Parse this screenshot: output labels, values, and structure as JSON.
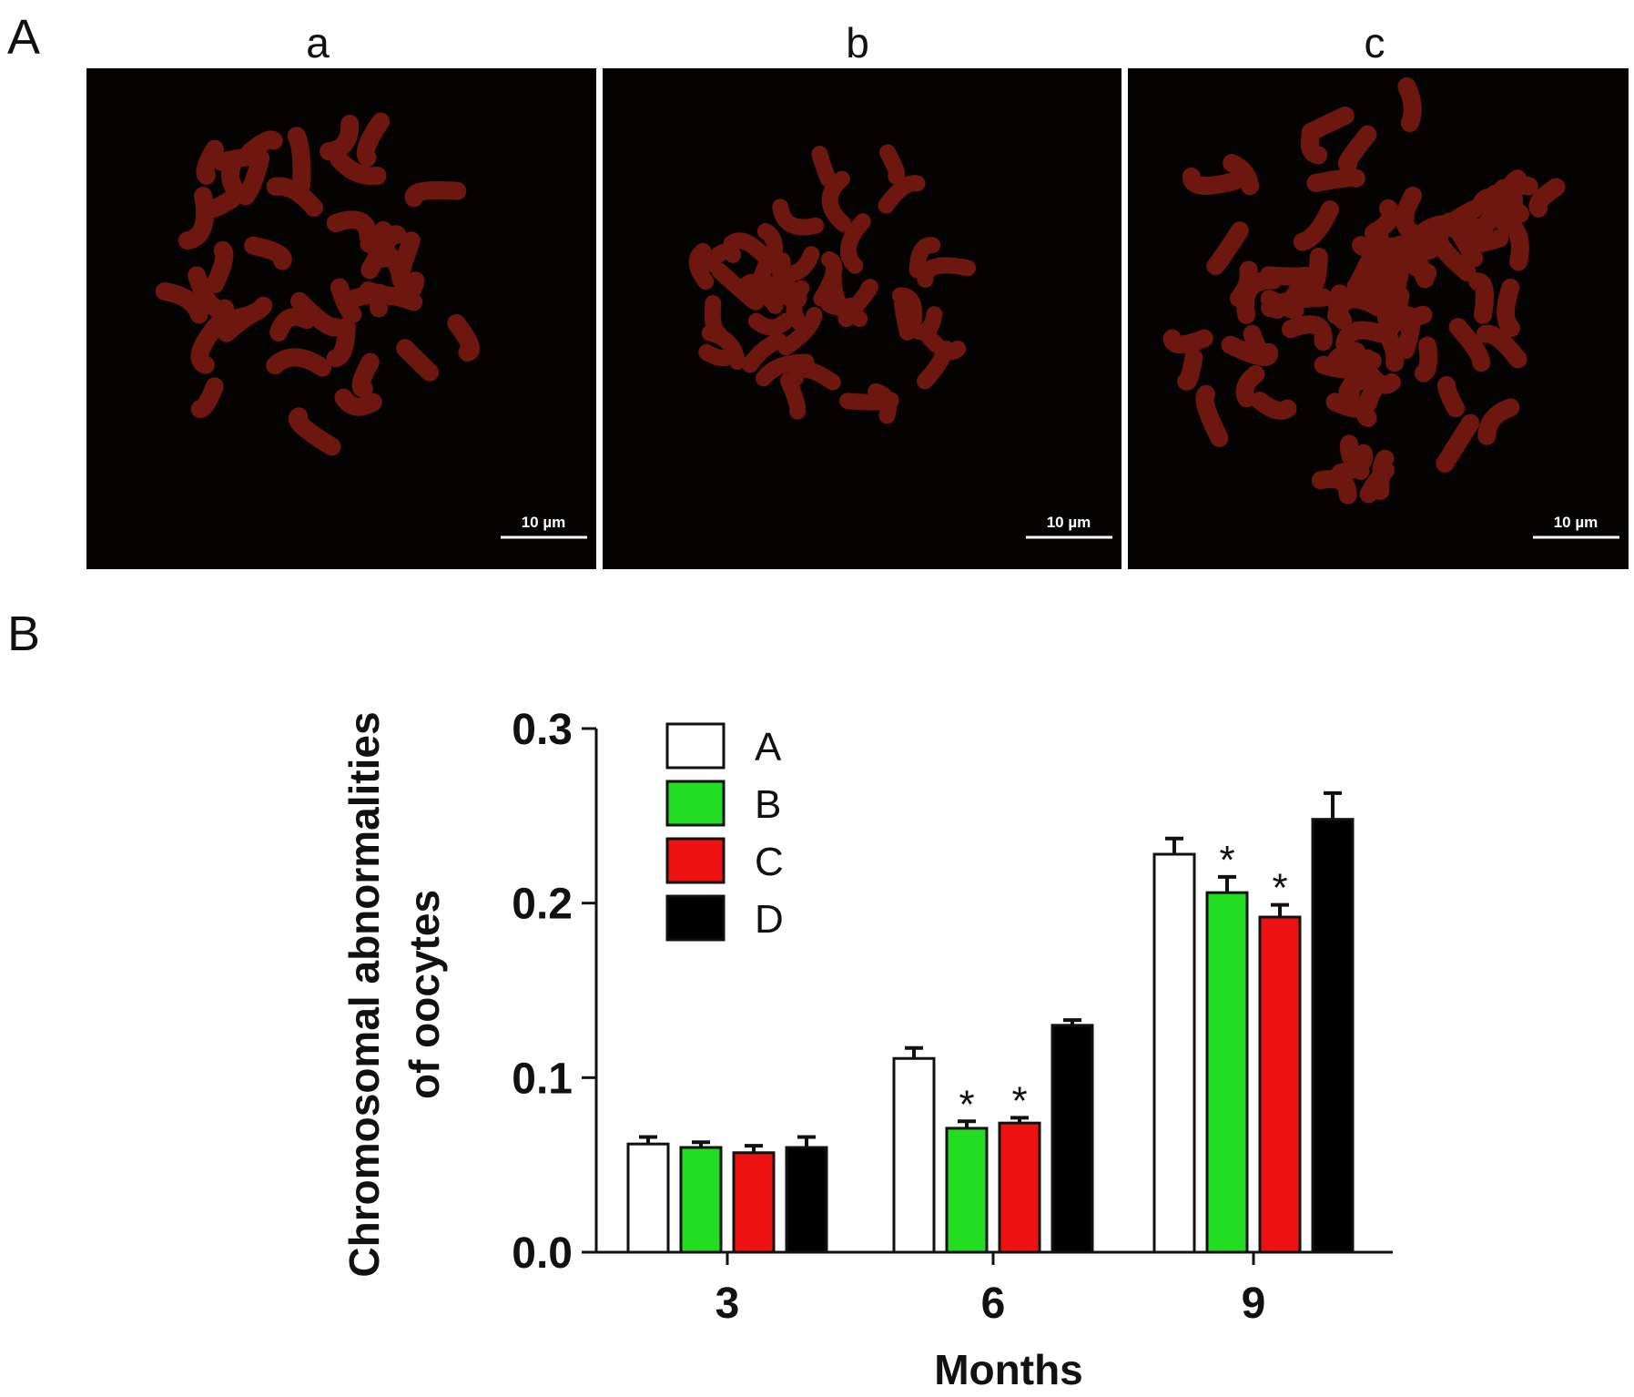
{
  "panel_a": {
    "letter": "A",
    "images": [
      {
        "label": "a",
        "scale_bar": "10 µm"
      },
      {
        "label": "b",
        "scale_bar": "10 µm"
      },
      {
        "label": "c",
        "scale_bar": "10 µm"
      }
    ]
  },
  "panel_b": {
    "letter": "B"
  },
  "colors": {
    "A": "#ffffff",
    "B": "#22dd22",
    "C": "#ee1111",
    "D": "#000000",
    "micro_bg": "#050202",
    "chromosome": "#7a1a10"
  },
  "chart_data": {
    "type": "bar",
    "xlabel": "Months",
    "ylabel_lines": [
      "Chromosomal abnormalities",
      "of oocytes"
    ],
    "categories": [
      "3",
      "6",
      "9"
    ],
    "ylim": [
      0,
      0.3
    ],
    "yticks": [
      "0.0",
      "0.1",
      "0.2",
      "0.3"
    ],
    "legend_position": "top-left",
    "series": [
      {
        "name": "A",
        "values": [
          0.062,
          0.111,
          0.228
        ],
        "errors": [
          0.004,
          0.006,
          0.009
        ],
        "significant": [
          false,
          false,
          false
        ]
      },
      {
        "name": "B",
        "values": [
          0.06,
          0.071,
          0.206
        ],
        "errors": [
          0.003,
          0.004,
          0.009
        ],
        "significant": [
          false,
          true,
          true
        ]
      },
      {
        "name": "C",
        "values": [
          0.057,
          0.074,
          0.192
        ],
        "errors": [
          0.004,
          0.003,
          0.007
        ],
        "significant": [
          false,
          true,
          true
        ]
      },
      {
        "name": "D",
        "values": [
          0.06,
          0.13,
          0.248
        ],
        "errors": [
          0.006,
          0.003,
          0.015
        ],
        "significant": [
          false,
          false,
          false
        ]
      }
    ],
    "significance_marker": "*"
  }
}
